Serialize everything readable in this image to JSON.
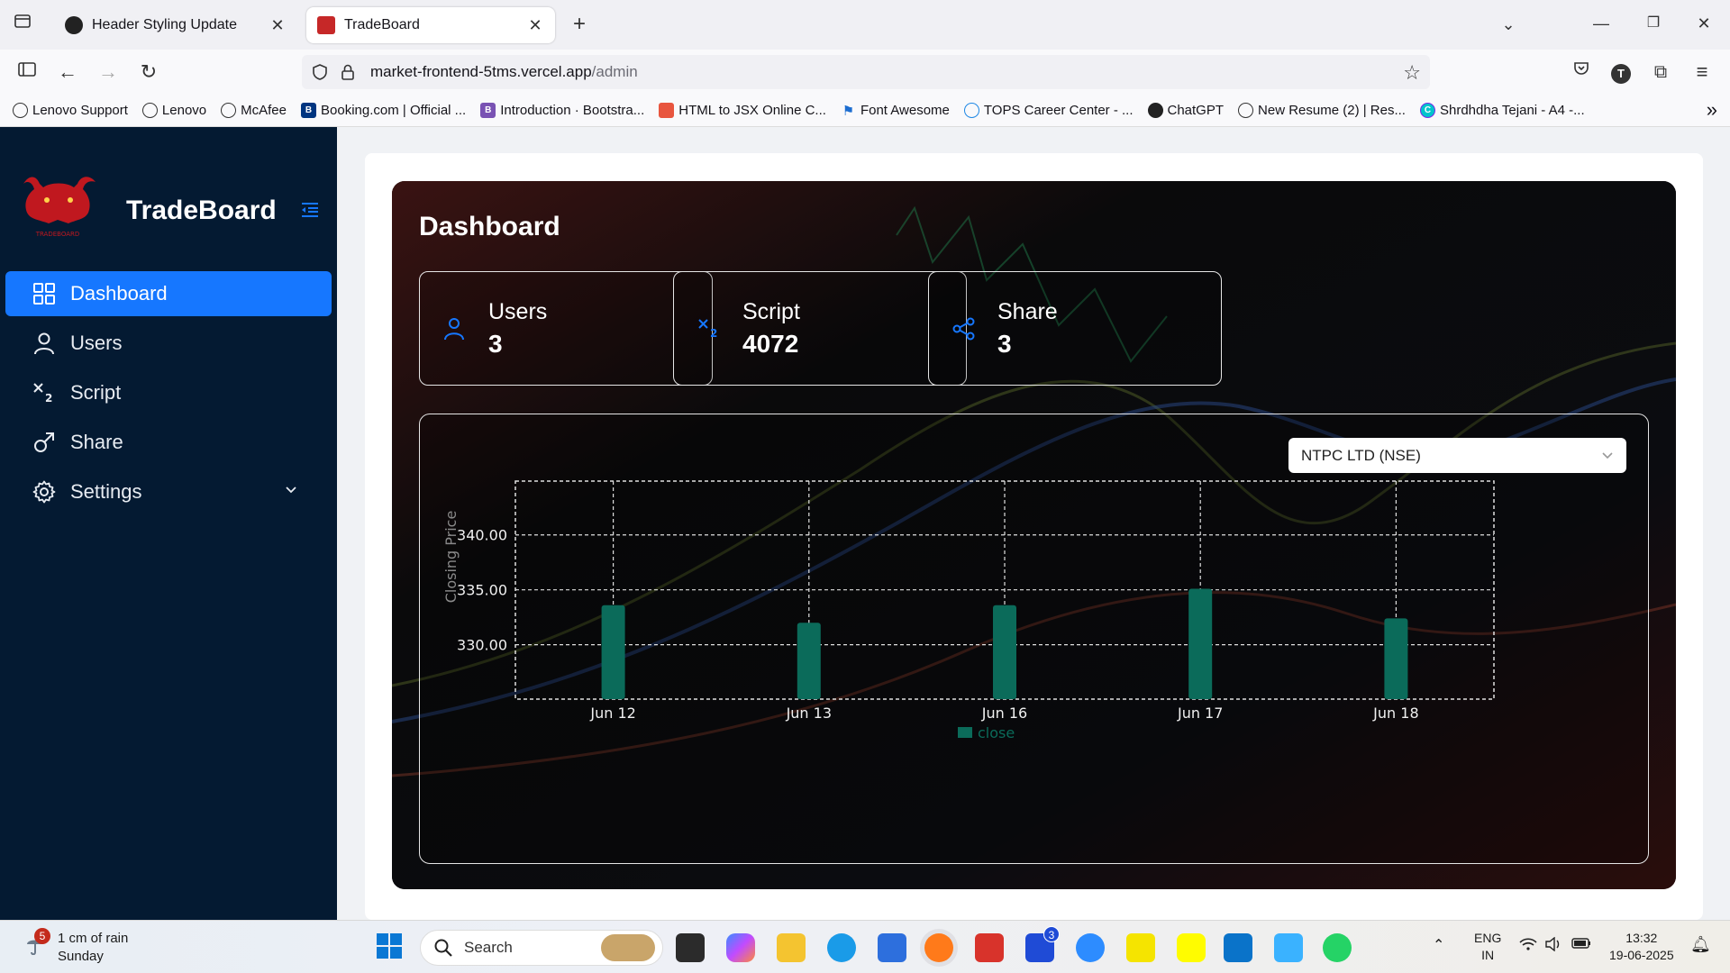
{
  "browser": {
    "tabs": [
      {
        "title": "Header Styling Update"
      },
      {
        "title": "TradeBoard"
      }
    ],
    "new_tab": "+",
    "url_host": "market-frontend-5tms.vercel.app",
    "url_path": "/admin",
    "bookmarks": [
      "Lenovo Support",
      "Lenovo",
      "McAfee",
      "Booking.com | Official ...",
      "Introduction · Bootstra...",
      "HTML to JSX Online C...",
      "Font Awesome",
      "TOPS Career Center - ...",
      "ChatGPT",
      "New Resume (2) | Res...",
      "Shrdhdha Tejani - A4 -..."
    ],
    "profile_initial": "T"
  },
  "sidebar": {
    "brand": "TradeBoard",
    "logo_text": "TRADEBOARD",
    "items": [
      {
        "label": "Dashboard",
        "icon": "dashboard-icon"
      },
      {
        "label": "Users",
        "icon": "user-icon"
      },
      {
        "label": "Script",
        "icon": "subscript-icon"
      },
      {
        "label": "Share",
        "icon": "share-icon"
      },
      {
        "label": "Settings",
        "icon": "gear-icon"
      }
    ]
  },
  "dashboard": {
    "title": "Dashboard",
    "stats": [
      {
        "label": "Users",
        "value": "3"
      },
      {
        "label": "Script",
        "value": "4072"
      },
      {
        "label": "Share",
        "value": "3"
      }
    ],
    "select_value": "NTPC LTD (NSE)"
  },
  "chart_data": {
    "type": "bar",
    "categories": [
      "Jun 12",
      "Jun 13",
      "Jun 16",
      "Jun 17",
      "Jun 18"
    ],
    "series": [
      {
        "name": "close",
        "values": [
          333.6,
          332.0,
          333.6,
          335.1,
          332.4
        ],
        "color": "#0b6b5a"
      }
    ],
    "ylabel": "Closing Price",
    "ytick_labels": [
      "330.00",
      "335.00",
      "340.00"
    ],
    "ylim": [
      325.05,
      344.9
    ],
    "grid": true,
    "legend_position": "bottom"
  },
  "taskbar": {
    "weather_badge": "5",
    "weather_line1": "1 cm of rain",
    "weather_line2": "Sunday",
    "search_label": "Search",
    "notif_badge": "3",
    "lang_line1": "ENG",
    "lang_line2": "IN",
    "time": "13:32",
    "date": "19-06-2025"
  },
  "colors": {
    "sidebar": "#041a32",
    "accent": "#1677ff",
    "bar": "#0b6b5a"
  }
}
